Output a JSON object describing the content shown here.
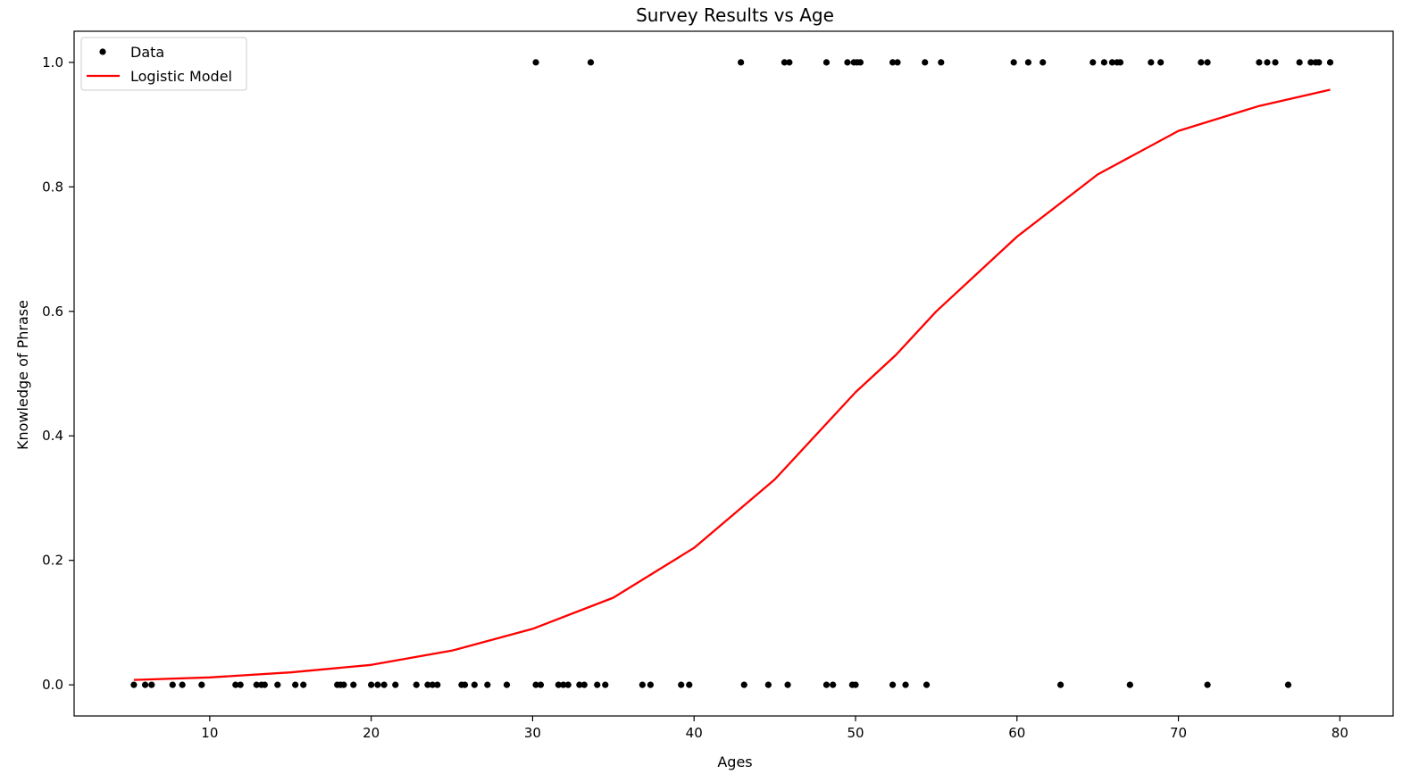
{
  "chart_data": {
    "type": "scatter",
    "title": "Survey Results vs Age",
    "xlabel": "Ages",
    "ylabel": "Knowledge of Phrase",
    "xlim": [
      1.6,
      83.3
    ],
    "ylim": [
      -0.05,
      1.05
    ],
    "xticks": [
      10,
      20,
      30,
      40,
      50,
      60,
      70,
      80
    ],
    "yticks": [
      0.0,
      0.2,
      0.4,
      0.6,
      0.8,
      1.0
    ],
    "xtick_labels": [
      "10",
      "20",
      "30",
      "40",
      "50",
      "60",
      "70",
      "80"
    ],
    "ytick_labels": [
      "0.0",
      "0.2",
      "0.4",
      "0.6",
      "0.8",
      "1.0"
    ],
    "grid": false,
    "legend": {
      "position": "top-left"
    },
    "series": [
      {
        "name": "Data",
        "kind": "scatter",
        "color": "#000000",
        "x": [
          5.3,
          6.0,
          6.4,
          7.7,
          8.3,
          9.5,
          11.6,
          11.9,
          12.9,
          13.2,
          13.4,
          14.2,
          15.3,
          15.8,
          17.9,
          18.1,
          18.3,
          18.9,
          20.0,
          20.4,
          20.8,
          21.5,
          22.8,
          23.5,
          23.8,
          24.1,
          25.6,
          25.8,
          26.4,
          27.2,
          28.4,
          30.2,
          30.5,
          31.6,
          31.9,
          32.2,
          32.9,
          33.2,
          34.0,
          34.5,
          36.8,
          37.3,
          39.2,
          39.7,
          43.1,
          44.6,
          45.8,
          48.2,
          48.6,
          49.8,
          50.0,
          52.3,
          53.1,
          54.4,
          62.7,
          67.0,
          71.8,
          76.8,
          30.2,
          33.6,
          42.9,
          45.6,
          45.9,
          48.2,
          49.5,
          49.9,
          50.1,
          50.3,
          52.3,
          52.6,
          54.3,
          55.3,
          59.8,
          60.7,
          61.6,
          64.7,
          65.4,
          65.9,
          66.2,
          66.4,
          68.3,
          68.9,
          71.4,
          71.8,
          75.0,
          75.5,
          76.0,
          77.5,
          78.2,
          78.5,
          78.7,
          79.4
        ],
        "y": [
          0,
          0,
          0,
          0,
          0,
          0,
          0,
          0,
          0,
          0,
          0,
          0,
          0,
          0,
          0,
          0,
          0,
          0,
          0,
          0,
          0,
          0,
          0,
          0,
          0,
          0,
          0,
          0,
          0,
          0,
          0,
          0,
          0,
          0,
          0,
          0,
          0,
          0,
          0,
          0,
          0,
          0,
          0,
          0,
          0,
          0,
          0,
          0,
          0,
          0,
          0,
          0,
          0,
          0,
          0,
          0,
          0,
          0,
          1,
          1,
          1,
          1,
          1,
          1,
          1,
          1,
          1,
          1,
          1,
          1,
          1,
          1,
          1,
          1,
          1,
          1,
          1,
          1,
          1,
          1,
          1,
          1,
          1,
          1,
          1,
          1,
          1,
          1,
          1,
          1,
          1,
          1
        ]
      },
      {
        "name": "Logistic Model",
        "kind": "line",
        "color": "#ff0000",
        "x": [
          5.3,
          10,
          15,
          20,
          25,
          30,
          35,
          40,
          45,
          50,
          52.5,
          55,
          60,
          65,
          70,
          75,
          79.4
        ],
        "y": [
          0.008,
          0.012,
          0.02,
          0.032,
          0.055,
          0.09,
          0.14,
          0.22,
          0.33,
          0.47,
          0.53,
          0.6,
          0.72,
          0.82,
          0.89,
          0.93,
          0.956
        ]
      }
    ]
  }
}
